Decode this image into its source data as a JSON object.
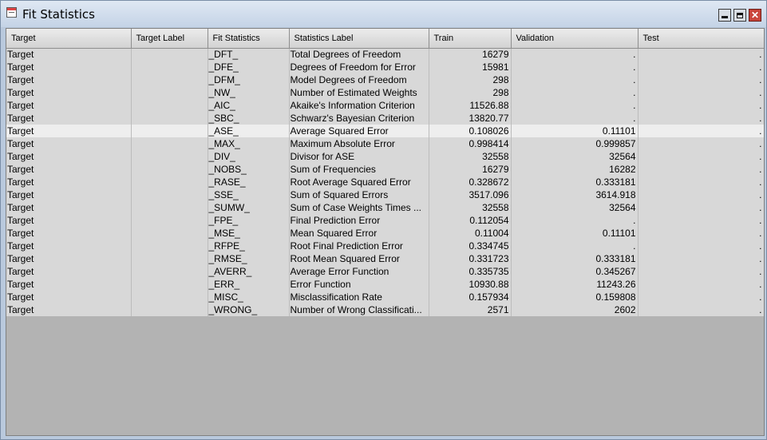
{
  "window": {
    "title": "Fit Statistics"
  },
  "columns": [
    "Target",
    "Target Label",
    "Fit Statistics",
    "Statistics Label",
    "Train",
    "Validation",
    "Test"
  ],
  "rows": [
    {
      "target": "Target",
      "target_label": "",
      "fit_stat": "_DFT_",
      "stat_label": "Total Degrees of Freedom",
      "train": "16279",
      "validation": ".",
      "test": "."
    },
    {
      "target": "Target",
      "target_label": "",
      "fit_stat": "_DFE_",
      "stat_label": "Degrees of Freedom for Error",
      "train": "15981",
      "validation": ".",
      "test": "."
    },
    {
      "target": "Target",
      "target_label": "",
      "fit_stat": "_DFM_",
      "stat_label": "Model Degrees of Freedom",
      "train": "298",
      "validation": ".",
      "test": "."
    },
    {
      "target": "Target",
      "target_label": "",
      "fit_stat": "_NW_",
      "stat_label": "Number of Estimated Weights",
      "train": "298",
      "validation": ".",
      "test": "."
    },
    {
      "target": "Target",
      "target_label": "",
      "fit_stat": "_AIC_",
      "stat_label": "Akaike's Information Criterion",
      "train": "11526.88",
      "validation": ".",
      "test": "."
    },
    {
      "target": "Target",
      "target_label": "",
      "fit_stat": "_SBC_",
      "stat_label": "Schwarz's Bayesian Criterion",
      "train": "13820.77",
      "validation": ".",
      "test": "."
    },
    {
      "target": "Target",
      "target_label": "",
      "fit_stat": "_ASE_",
      "stat_label": "Average Squared Error",
      "train": "0.108026",
      "validation": "0.11101",
      "test": "."
    },
    {
      "target": "Target",
      "target_label": "",
      "fit_stat": "_MAX_",
      "stat_label": "Maximum Absolute Error",
      "train": "0.998414",
      "validation": "0.999857",
      "test": "."
    },
    {
      "target": "Target",
      "target_label": "",
      "fit_stat": "_DIV_",
      "stat_label": "Divisor for ASE",
      "train": "32558",
      "validation": "32564",
      "test": "."
    },
    {
      "target": "Target",
      "target_label": "",
      "fit_stat": "_NOBS_",
      "stat_label": "Sum of Frequencies",
      "train": "16279",
      "validation": "16282",
      "test": "."
    },
    {
      "target": "Target",
      "target_label": "",
      "fit_stat": "_RASE_",
      "stat_label": "Root Average Squared Error",
      "train": "0.328672",
      "validation": "0.333181",
      "test": "."
    },
    {
      "target": "Target",
      "target_label": "",
      "fit_stat": "_SSE_",
      "stat_label": "Sum of Squared Errors",
      "train": "3517.096",
      "validation": "3614.918",
      "test": "."
    },
    {
      "target": "Target",
      "target_label": "",
      "fit_stat": "_SUMW_",
      "stat_label": "Sum of Case Weights Times ...",
      "train": "32558",
      "validation": "32564",
      "test": "."
    },
    {
      "target": "Target",
      "target_label": "",
      "fit_stat": "_FPE_",
      "stat_label": "Final Prediction Error",
      "train": "0.112054",
      "validation": ".",
      "test": "."
    },
    {
      "target": "Target",
      "target_label": "",
      "fit_stat": "_MSE_",
      "stat_label": "Mean Squared Error",
      "train": "0.11004",
      "validation": "0.11101",
      "test": "."
    },
    {
      "target": "Target",
      "target_label": "",
      "fit_stat": "_RFPE_",
      "stat_label": "Root Final Prediction Error",
      "train": "0.334745",
      "validation": ".",
      "test": "."
    },
    {
      "target": "Target",
      "target_label": "",
      "fit_stat": "_RMSE_",
      "stat_label": "Root Mean Squared Error",
      "train": "0.331723",
      "validation": "0.333181",
      "test": "."
    },
    {
      "target": "Target",
      "target_label": "",
      "fit_stat": "_AVERR_",
      "stat_label": "Average Error Function",
      "train": "0.335735",
      "validation": "0.345267",
      "test": "."
    },
    {
      "target": "Target",
      "target_label": "",
      "fit_stat": "_ERR_",
      "stat_label": "Error Function",
      "train": "10930.88",
      "validation": "11243.26",
      "test": "."
    },
    {
      "target": "Target",
      "target_label": "",
      "fit_stat": "_MISC_",
      "stat_label": "Misclassification Rate",
      "train": "0.157934",
      "validation": "0.159808",
      "test": "."
    },
    {
      "target": "Target",
      "target_label": "",
      "fit_stat": "_WRONG_",
      "stat_label": "Number of Wrong Classificati...",
      "train": "2571",
      "validation": "2602",
      "test": "."
    }
  ],
  "selected_row": 6,
  "icons": {
    "window": "table-window-icon",
    "minimize": "minimize-icon",
    "maximize": "maximize-icon",
    "close": "close-icon"
  },
  "colors": {
    "titlebar": "#c4d3e6",
    "row_bg": "#d8d8d8",
    "selected_row_bg": "#eeeeee",
    "empty_area": "#b3b3b3",
    "close_button": "#c9443a"
  }
}
